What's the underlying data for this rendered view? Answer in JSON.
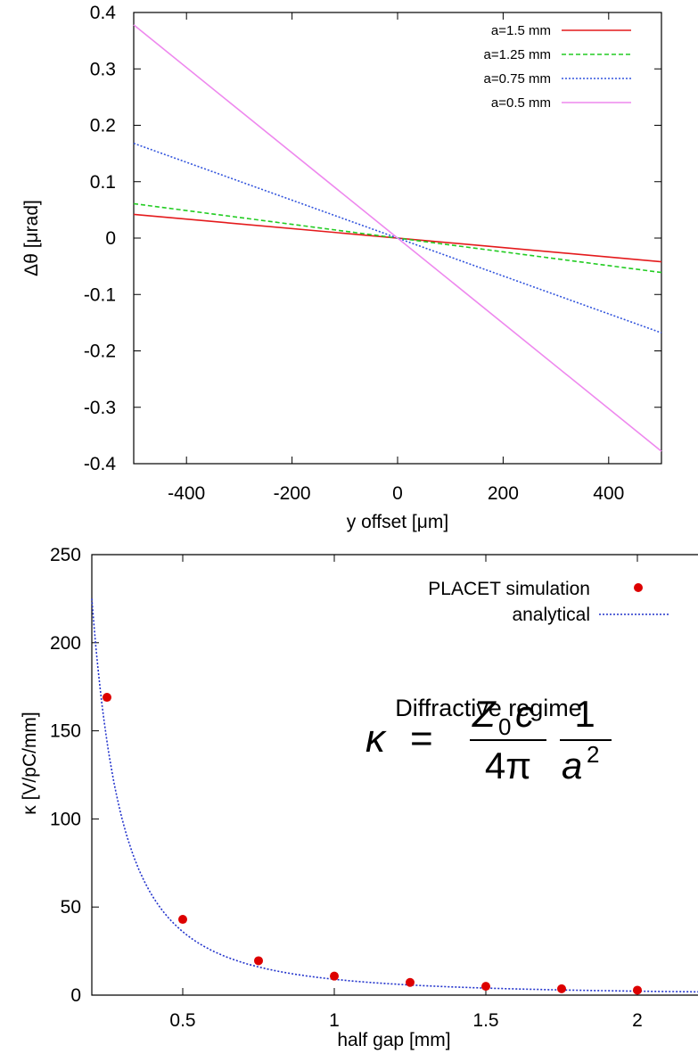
{
  "chart_data": [
    {
      "type": "line",
      "title": "",
      "xlabel": "y offset [μm]",
      "ylabel": "Δθ [μrad]",
      "xlim": [
        -500,
        500
      ],
      "ylim": [
        -0.4,
        0.4
      ],
      "xticks": [
        "-400",
        "-200",
        "0",
        "200",
        "400"
      ],
      "xtick_values": [
        -400,
        -200,
        0,
        200,
        400
      ],
      "yticks": [
        "0.4",
        "0.3",
        "0.2",
        "0.1",
        "0",
        "-0.1",
        "-0.2",
        "-0.3",
        "-0.4"
      ],
      "ytick_values": [
        0.4,
        0.3,
        0.2,
        0.1,
        0,
        -0.1,
        -0.2,
        -0.3,
        -0.4
      ],
      "grid": false,
      "legend_position": "top-right",
      "series": [
        {
          "name": "a=1.5 mm",
          "color": "#e41a1c",
          "dash": "solid",
          "x": [
            -500,
            500
          ],
          "y": [
            0.042,
            -0.042
          ]
        },
        {
          "name": "a=1.25 mm",
          "color": "#22cc22",
          "dash": "dashed",
          "x": [
            -500,
            500
          ],
          "y": [
            0.061,
            -0.061
          ]
        },
        {
          "name": "a=0.75 mm",
          "color": "#3355dd",
          "dash": "dotted",
          "x": [
            -500,
            500
          ],
          "y": [
            0.168,
            -0.168
          ]
        },
        {
          "name": "a=0.5 mm",
          "color": "#ee88ee",
          "dash": "solid",
          "x": [
            -500,
            500
          ],
          "y": [
            0.378,
            -0.378
          ]
        }
      ]
    },
    {
      "type": "scatter",
      "title": "",
      "xlabel": "half gap [mm]",
      "ylabel": "κ [V/pC/mm]",
      "xlim": [
        0.2,
        2.2
      ],
      "ylim": [
        0,
        250
      ],
      "xticks": [
        "0.5",
        "1",
        "1.5",
        "2"
      ],
      "xtick_values": [
        0.5,
        1,
        1.5,
        2
      ],
      "yticks": [
        "250",
        "200",
        "150",
        "100",
        "50",
        "0"
      ],
      "ytick_values": [
        250,
        200,
        150,
        100,
        50,
        0
      ],
      "grid": false,
      "legend_position": "top-right",
      "annotation": "Diffractive regime",
      "formula": {
        "lhs": "κ",
        "eq": "=",
        "num1": "Z",
        "num1_sub": "0",
        "num1_tail": "c",
        "den1": "4π",
        "num2": "1",
        "den2": "a",
        "den2_sup": "2"
      },
      "series": [
        {
          "name": "PLACET simulation",
          "kind": "points",
          "color": "#dd0000",
          "x": [
            0.25,
            0.5,
            0.75,
            1.0,
            1.25,
            1.5,
            1.75,
            2.0
          ],
          "y": [
            169,
            43,
            19.5,
            10.8,
            7.2,
            5.0,
            3.6,
            2.8
          ]
        },
        {
          "name": "analytical",
          "kind": "curve",
          "color": "#2233cc",
          "dash": "dotted",
          "function": "k/x^2",
          "k": 9.0
        }
      ]
    }
  ]
}
